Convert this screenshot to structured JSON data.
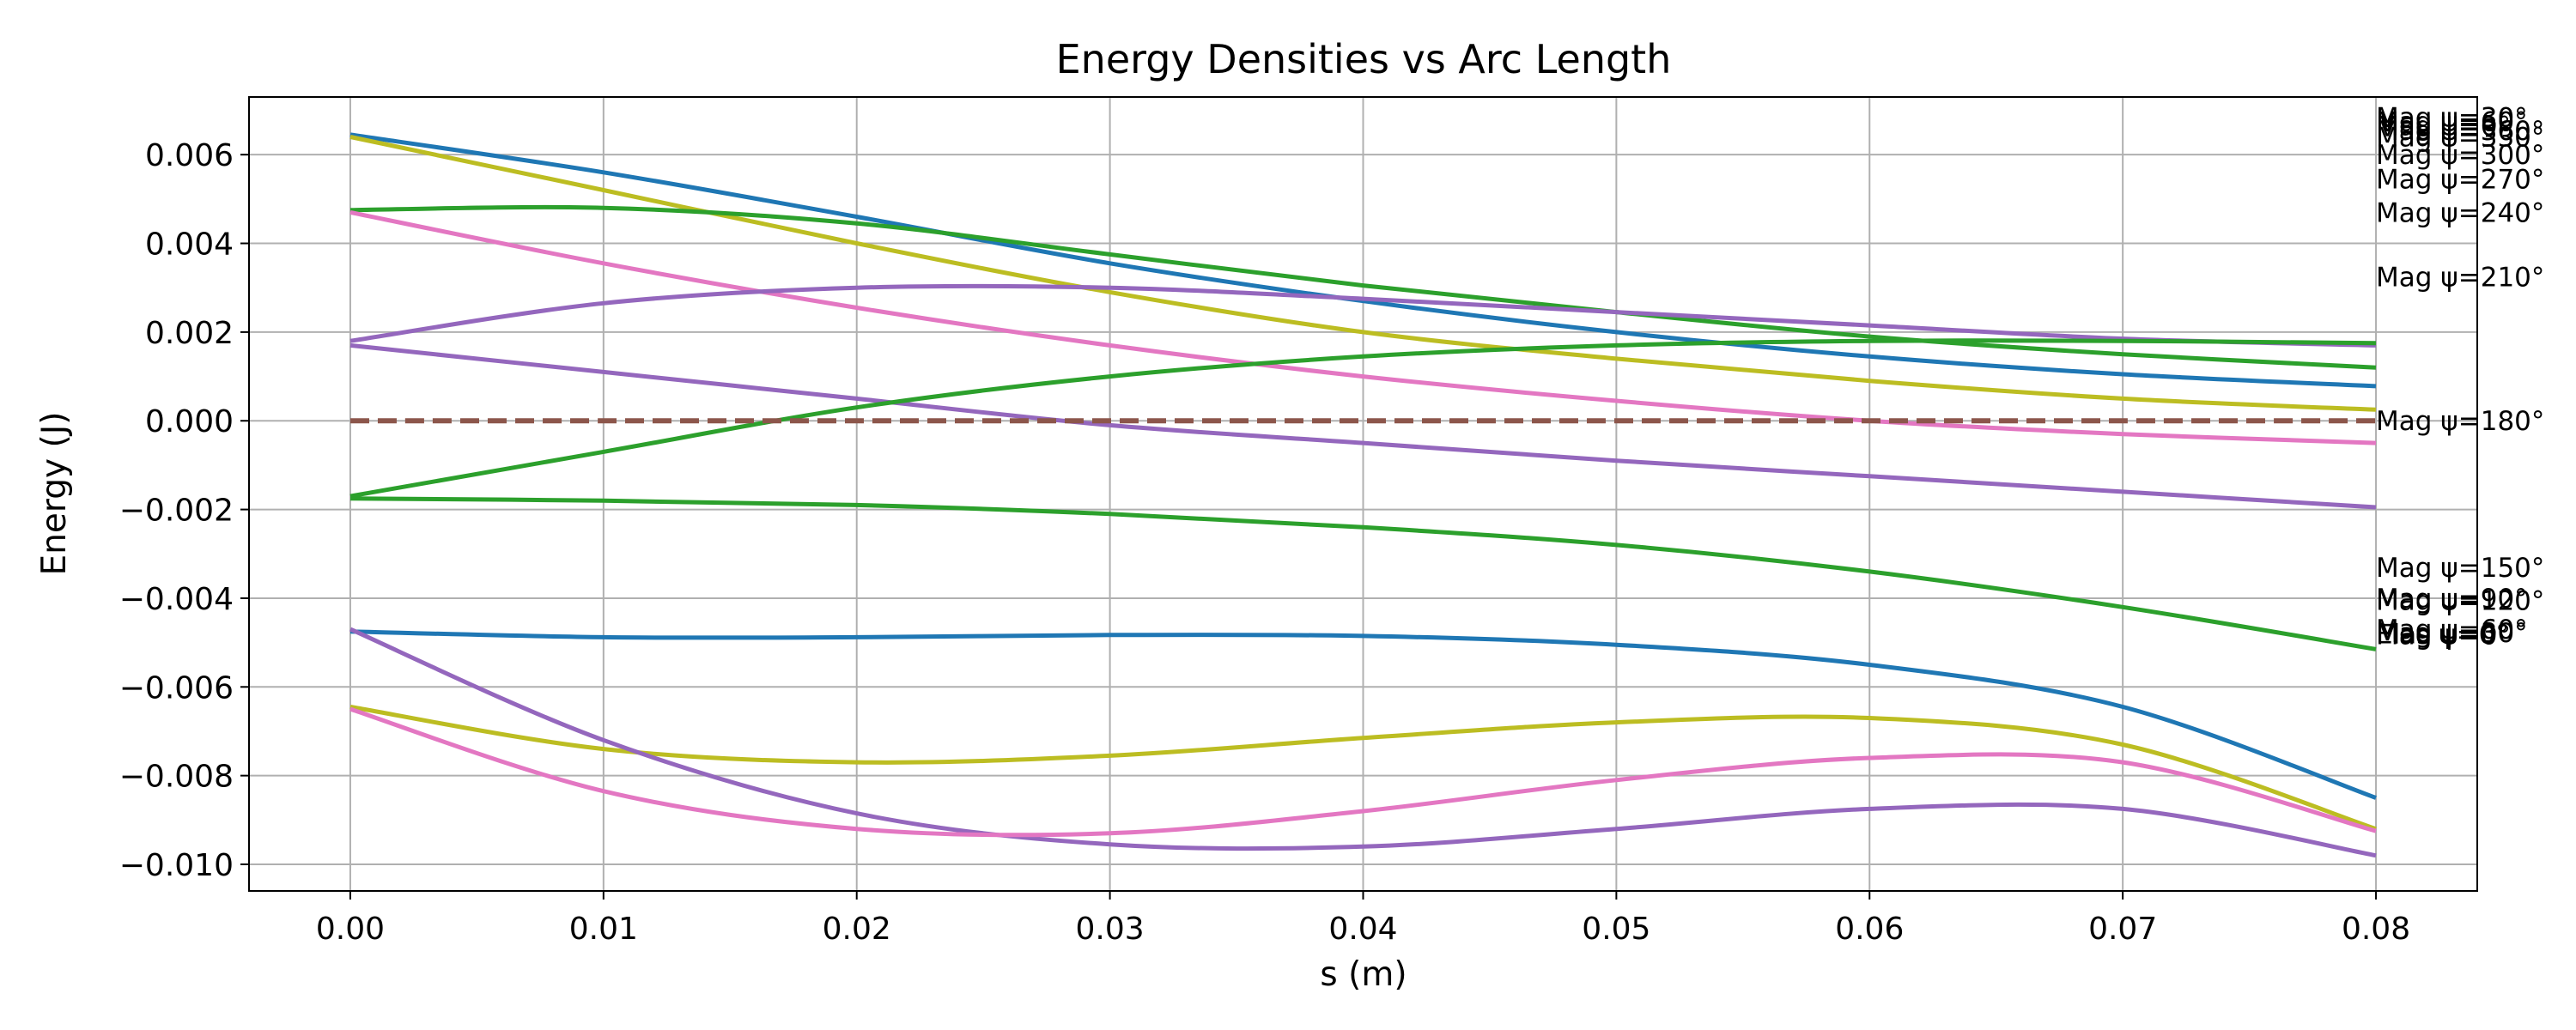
{
  "chart_data": {
    "type": "line",
    "title": "Energy Densities vs Arc Length",
    "xlabel": "s (m)",
    "ylabel": "Energy (J)",
    "xlim": [
      -0.004,
      0.084
    ],
    "ylim": [
      -0.0106,
      0.0073
    ],
    "grid": true,
    "x_ticks": [
      0.0,
      0.01,
      0.02,
      0.03,
      0.04,
      0.05,
      0.06,
      0.07,
      0.08
    ],
    "x_tick_labels": [
      "0.00",
      "0.01",
      "0.02",
      "0.03",
      "0.04",
      "0.05",
      "0.06",
      "0.07",
      "0.08"
    ],
    "y_ticks": [
      0.006,
      0.004,
      0.002,
      0.0,
      -0.002,
      -0.004,
      -0.006,
      -0.008,
      -0.01
    ],
    "y_tick_labels": [
      "0.006",
      "0.004",
      "0.002",
      "0.000",
      "−0.002",
      "−0.004",
      "−0.006",
      "−0.008",
      "−0.010"
    ],
    "x": [
      0.0,
      0.01,
      0.02,
      0.03,
      0.04,
      0.05,
      0.06,
      0.07,
      0.08
    ],
    "series": [
      {
        "color": "#1f77b4",
        "values": [
          0.00645,
          0.0056,
          0.0046,
          0.00355,
          0.0027,
          0.002,
          0.00145,
          0.00105,
          0.00078
        ]
      },
      {
        "color": "#bcbd22",
        "values": [
          0.0064,
          0.0052,
          0.004,
          0.0029,
          0.002,
          0.0014,
          0.0009,
          0.0005,
          0.00025
        ]
      },
      {
        "color": "#2ca02c",
        "values": [
          0.00475,
          0.0048,
          0.00445,
          0.00375,
          0.00305,
          0.00245,
          0.0019,
          0.0015,
          0.0012
        ]
      },
      {
        "color": "#e377c2",
        "values": [
          0.0047,
          0.00355,
          0.00255,
          0.0017,
          0.001,
          0.00045,
          0.0,
          -0.0003,
          -0.0005
        ]
      },
      {
        "color": "#9467bd",
        "values": [
          0.0018,
          0.00265,
          0.003,
          0.003,
          0.00275,
          0.00245,
          0.00215,
          0.00185,
          0.0017
        ]
      },
      {
        "color": "#9467bd",
        "values": [
          0.0017,
          0.0011,
          0.0005,
          -0.0001,
          -0.0005,
          -0.0009,
          -0.00125,
          -0.0016,
          -0.00195
        ]
      },
      {
        "color": "#2ca02c",
        "values": [
          -0.0017,
          -0.0007,
          0.0003,
          0.001,
          0.00145,
          0.0017,
          0.0018,
          0.0018,
          0.00175
        ]
      },
      {
        "color": "#2ca02c",
        "values": [
          -0.00175,
          -0.0018,
          -0.0019,
          -0.0021,
          -0.0024,
          -0.0028,
          -0.0034,
          -0.0042,
          -0.00515
        ]
      },
      {
        "color": "#1f77b4",
        "values": [
          -0.00475,
          -0.00488,
          -0.00488,
          -0.00483,
          -0.00485,
          -0.00505,
          -0.0055,
          -0.00645,
          -0.0085
        ]
      },
      {
        "color": "#bcbd22",
        "values": [
          -0.00645,
          -0.0074,
          -0.0077,
          -0.00755,
          -0.00715,
          -0.0068,
          -0.0067,
          -0.0073,
          -0.0092
        ]
      },
      {
        "color": "#9467bd",
        "values": [
          -0.0047,
          -0.0072,
          -0.00885,
          -0.00955,
          -0.0096,
          -0.0092,
          -0.00875,
          -0.00875,
          -0.0098
        ]
      },
      {
        "color": "#e377c2",
        "values": [
          -0.0065,
          -0.00835,
          -0.0092,
          -0.0093,
          -0.0088,
          -0.0081,
          -0.0076,
          -0.0077,
          -0.00925
        ]
      },
      {
        "color": "#8c564b",
        "dashed": true,
        "values": [
          0,
          0,
          0,
          0,
          0,
          0,
          0,
          0,
          0
        ]
      }
    ],
    "annotations": [
      {
        "text": "Mag ψ=30°",
        "y": 0.00685
      },
      {
        "text": "Mag ψ=60°",
        "y": 0.00675
      },
      {
        "text": "Mag ψ=0°",
        "y": 0.00665
      },
      {
        "text": "Mag ψ=360°",
        "y": 0.00655
      },
      {
        "text": "Mag ψ=330°",
        "y": 0.0064
      },
      {
        "text": "Mag ψ=300°",
        "y": 0.006
      },
      {
        "text": "Mag ψ=270°",
        "y": 0.00545
      },
      {
        "text": "Mag ψ=240°",
        "y": 0.0047
      },
      {
        "text": "Mag ψ=210°",
        "y": 0.00325
      },
      {
        "text": "Mag ψ=180°",
        "y": 0.0
      },
      {
        "text": "Mag ψ=150°",
        "y": -0.0033
      },
      {
        "text": "Mag ψ=120°",
        "y": -0.00405
      },
      {
        "text": "Mag ψ=90°",
        "y": -0.004
      },
      {
        "text": "Mag ψ=60°",
        "y": -0.0047
      },
      {
        "text": "Elas ψ=0°",
        "y": -0.0048
      },
      {
        "text": "Mag ψ=30°",
        "y": -0.00478
      },
      {
        "text": "Mag ψ=0°",
        "y": -0.00482
      }
    ]
  }
}
